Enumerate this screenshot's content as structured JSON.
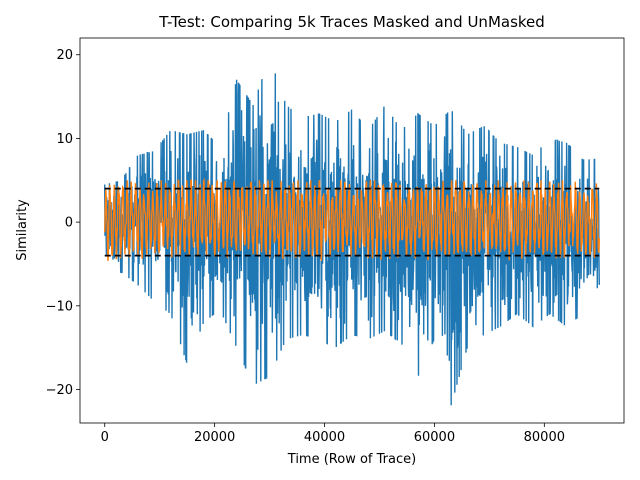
{
  "chart_data": {
    "type": "line",
    "title": "T-Test: Comparing 5k Traces Masked and UnMasked",
    "xlabel": "Time (Row of Trace)",
    "ylabel": "Similarity",
    "xlim": [
      -4500,
      94500
    ],
    "ylim": [
      -24,
      22
    ],
    "x_ticks": [
      0,
      20000,
      40000,
      60000,
      80000
    ],
    "x_tick_labels": [
      "0",
      "20000",
      "40000",
      "60000",
      "80000"
    ],
    "y_ticks": [
      -20,
      -10,
      0,
      10,
      20
    ],
    "y_tick_labels": [
      "−20",
      "−10",
      "0",
      "10",
      "20"
    ],
    "grid": false,
    "series": [
      {
        "color": "#1f77b4",
        "x_range": [
          0,
          90000
        ],
        "envelope_x": [
          0,
          3000,
          6000,
          9000,
          12000,
          15000,
          18000,
          21000,
          24000,
          27000,
          30000,
          33000,
          36000,
          39000,
          42000,
          45000,
          48000,
          51000,
          54000,
          57000,
          60000,
          63000,
          66000,
          69000,
          72000,
          75000,
          78000,
          81000,
          84000,
          87000,
          90000
        ],
        "envelope_max": [
          4.5,
          5.0,
          8.0,
          8.5,
          11.0,
          10.5,
          11.0,
          9.0,
          17.0,
          14.0,
          19.8,
          14.0,
          12.5,
          13.0,
          12.0,
          13.5,
          11.0,
          14.0,
          11.0,
          13.0,
          11.5,
          13.5,
          10.5,
          11.5,
          9.5,
          9.0,
          8.0,
          10.0,
          9.5,
          7.5,
          7.5
        ],
        "envelope_min": [
          -5.5,
          -6.0,
          -7.5,
          -9.5,
          -11.0,
          -17.0,
          -12.0,
          -10.5,
          -15.0,
          -19.5,
          -18.5,
          -14.0,
          -13.5,
          -14.0,
          -15.0,
          -13.5,
          -14.0,
          -13.0,
          -14.5,
          -18.5,
          -14.0,
          -22.0,
          -15.0,
          -13.5,
          -12.5,
          -11.0,
          -12.5,
          -11.0,
          -12.5,
          -11.0,
          -7.5
        ]
      },
      {
        "color": "#ff7f0e",
        "x_range": [
          0,
          90000
        ],
        "envelope_max": 5.0,
        "envelope_min": -6.0
      },
      {
        "color": "#000000",
        "style": "dashed",
        "x_range": [
          0,
          90000
        ],
        "values": [
          4.0
        ]
      },
      {
        "color": "#000000",
        "style": "dashed",
        "x_range": [
          0,
          90000
        ],
        "values": [
          -4.0
        ]
      }
    ]
  }
}
